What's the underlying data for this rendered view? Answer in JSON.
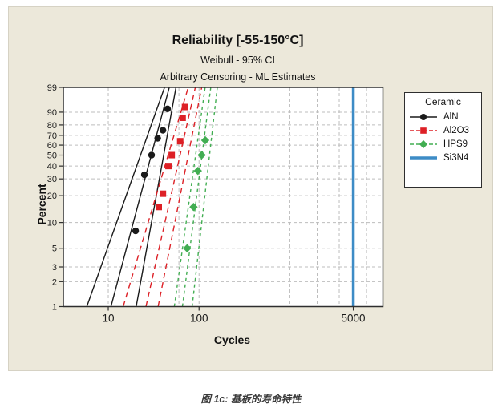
{
  "figure": {
    "title": "Reliability [-55-150°C]",
    "subtitle1": "Weibull - 95% CI",
    "subtitle2": "Arbitrary Censoring - ML Estimates"
  },
  "caption": "图 1c:  基板的寿命特性",
  "legend": {
    "title": "Ceramic",
    "entries": [
      {
        "label": "AlN",
        "color": "#1a1a1a",
        "marker": "circle",
        "line": "solid"
      },
      {
        "label": "Al2O3",
        "color": "#dd2026",
        "marker": "square",
        "line": "dashed"
      },
      {
        "label": "HPS9",
        "color": "#42ae52",
        "marker": "diamond",
        "line": "dashed"
      },
      {
        "label": "Si3N4",
        "color": "#3d8cc6",
        "marker": "none",
        "line": "thick-solid"
      }
    ]
  },
  "chart_data": {
    "type": "line",
    "subtype": "weibull-probability-plot",
    "title": "Reliability [-55-150°C]",
    "xlabel": "Cycles",
    "ylabel": "Percent",
    "grid": true,
    "legend_position": "right",
    "x_axis": {
      "label": "Cycles",
      "scale": "log",
      "min": 3.2,
      "max": 10600,
      "ticks": [
        10,
        100,
        5000
      ],
      "gridlines": [
        10,
        60,
        100,
        1000,
        2000,
        3500,
        7000
      ]
    },
    "y_axis": {
      "label": "Percent",
      "scale": "weibull-percent",
      "min": 1,
      "max": 99,
      "ticks": [
        99,
        90,
        80,
        70,
        60,
        50,
        40,
        30,
        20,
        10,
        5,
        3,
        2,
        1
      ]
    },
    "series": [
      {
        "name": "AlN",
        "color": "#1a1a1a",
        "marker": "circle",
        "line_style": "solid",
        "points": [
          [
            20,
            8
          ],
          [
            25,
            33
          ],
          [
            30,
            50
          ],
          [
            35,
            67
          ],
          [
            40,
            75
          ],
          [
            45,
            92
          ]
        ],
        "fit_line": [
          [
            10.7,
            1
          ],
          [
            47,
            99
          ]
        ],
        "ci_lower": [
          [
            5.8,
            1
          ],
          [
            41.7,
            99
          ]
        ],
        "ci_upper": [
          [
            20.3,
            1
          ],
          [
            55.7,
            99
          ]
        ]
      },
      {
        "name": "Al2O3",
        "color": "#dd2026",
        "marker": "square",
        "line_style": "dashed",
        "dash": "7,5",
        "points": [
          [
            36,
            15
          ],
          [
            40,
            21
          ],
          [
            46,
            40
          ],
          [
            50,
            50
          ],
          [
            62,
            64
          ],
          [
            66,
            86
          ],
          [
            70,
            93
          ]
        ],
        "fit_line": [
          [
            26,
            1
          ],
          [
            91,
            99
          ]
        ],
        "ci_lower": [
          [
            14.6,
            1
          ],
          [
            76,
            99
          ]
        ],
        "ci_upper": [
          [
            35.4,
            1
          ],
          [
            107,
            99
          ]
        ]
      },
      {
        "name": "HPS9",
        "color": "#42ae52",
        "marker": "diamond",
        "line_style": "dashed",
        "dash": "4,4",
        "points": [
          [
            74,
            5
          ],
          [
            87,
            15
          ],
          [
            97,
            36
          ],
          [
            107,
            50
          ],
          [
            117,
            65
          ]
        ],
        "fit_line": [
          [
            65.6,
            1
          ],
          [
            134.6,
            99
          ]
        ],
        "ci_lower": [
          [
            53.4,
            1
          ],
          [
            116.7,
            99
          ]
        ],
        "ci_upper": [
          [
            83.9,
            1
          ],
          [
            158.9,
            99
          ]
        ]
      },
      {
        "name": "Si3N4",
        "color": "#3d8cc6",
        "marker": "none",
        "line_style": "vertical-solid",
        "vline_x": 5000
      }
    ],
    "style": {
      "grid_color": "#bdbdbd",
      "frame_color": "#2e2e2e",
      "plot_bg": "#ffffff",
      "panel_bg": "#ece8da",
      "tick_color": "#2e2e2e"
    }
  }
}
